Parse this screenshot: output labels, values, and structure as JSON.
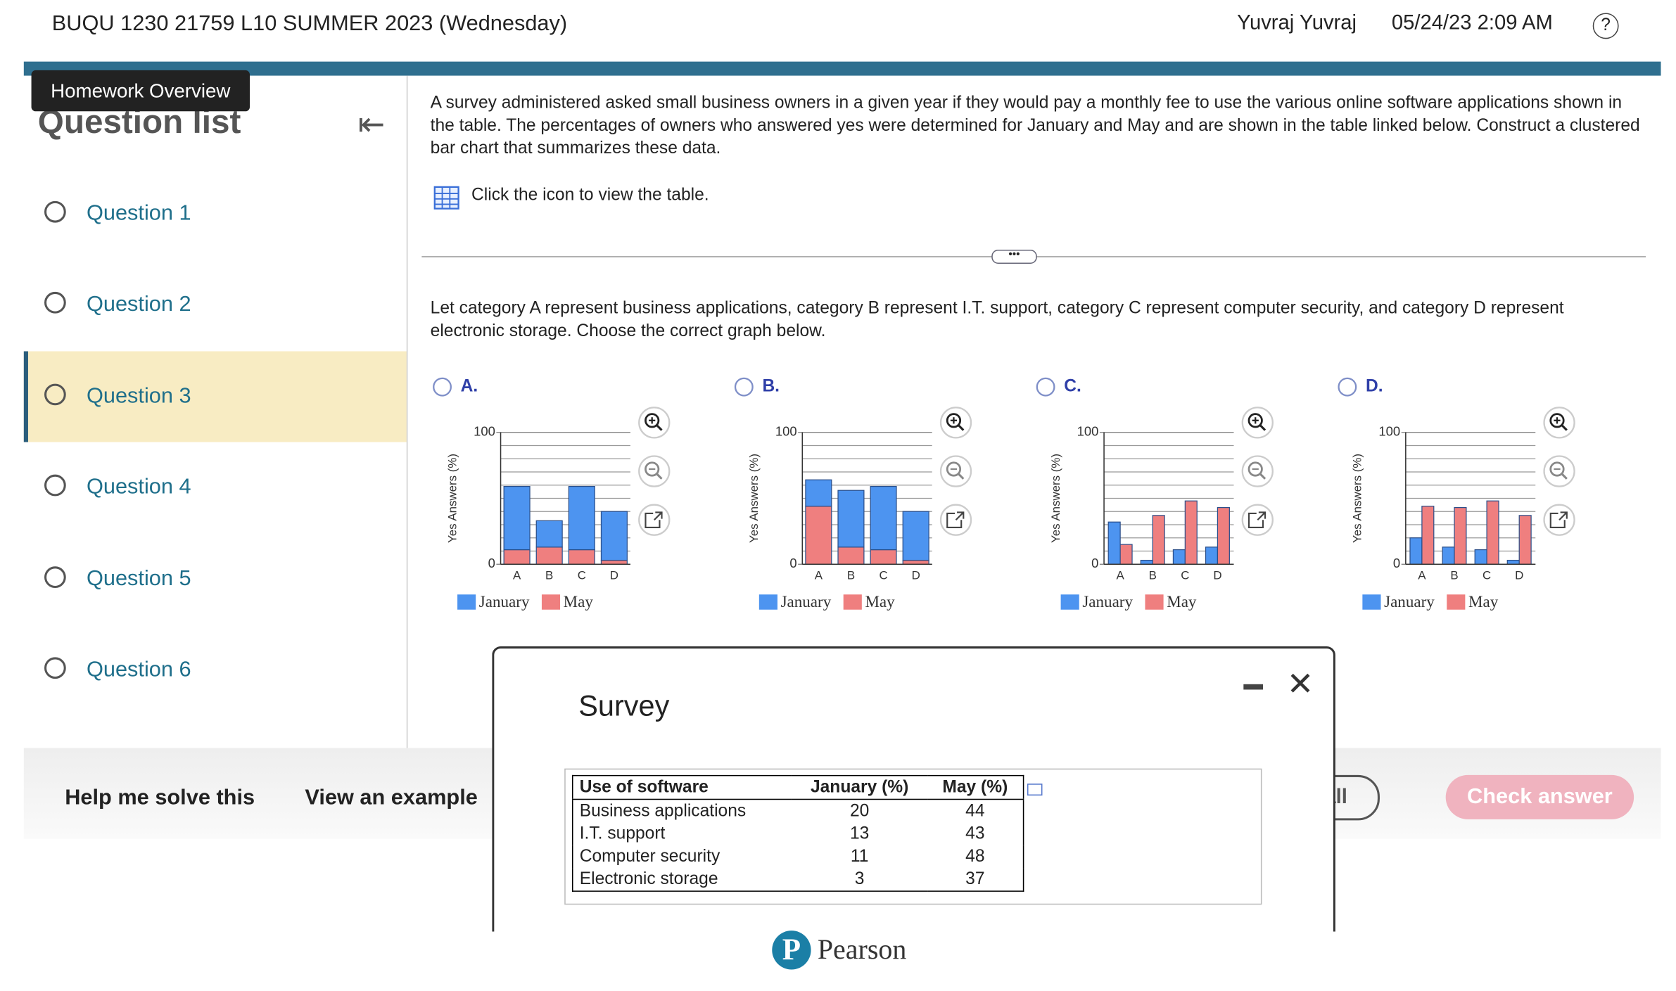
{
  "header": {
    "course": "BUQU 1230 21759 L10 SUMMER 2023 (Wednesday)",
    "user": "Yuvraj Yuvraj",
    "datetime": "05/24/23 2:09 AM"
  },
  "sidebar": {
    "tooltip": "Homework Overview",
    "title": "Question list",
    "questions": [
      "Question 1",
      "Question 2",
      "Question 3",
      "Question 4",
      "Question 5",
      "Question 6"
    ]
  },
  "question": {
    "text": "A survey administered asked small business owners in a given year if they would pay a monthly fee to use the various online software applications shown in the table. The percentages of owners who answered yes were determined for January and May and are shown in the table linked below. Construct a clustered bar chart that summarizes these data.",
    "table_link": "Click the icon to view the table.",
    "prompt": "Let category A represent business applications, category B represent I.T. support, category C represent computer security, and category D represent electronic storage. Choose the correct graph below.",
    "options": [
      "A.",
      "B.",
      "C.",
      "D."
    ]
  },
  "chart_data": [
    {
      "type": "bar",
      "stacked": true,
      "y_label": "Yes Answers (%)",
      "categories": [
        "A",
        "B",
        "C",
        "D"
      ],
      "series": [
        {
          "name": "January",
          "color": "#4d94f0",
          "values": [
            48,
            20,
            48,
            37
          ]
        },
        {
          "name": "May",
          "color": "#ef7f7f",
          "values": [
            11,
            13,
            11,
            3
          ]
        }
      ],
      "ylim": [
        0,
        100
      ],
      "yticks": [
        0,
        100
      ],
      "minor_ticks": [
        10,
        20,
        30,
        40,
        50,
        60,
        70,
        80,
        90
      ],
      "grid": true
    },
    {
      "type": "bar",
      "stacked": true,
      "y_label": "Yes Answers (%)",
      "categories": [
        "A",
        "B",
        "C",
        "D"
      ],
      "series": [
        {
          "name": "January",
          "color": "#4d94f0",
          "values": [
            20,
            43,
            48,
            37
          ]
        },
        {
          "name": "May",
          "color": "#ef7f7f",
          "values": [
            44,
            13,
            11,
            3
          ]
        }
      ],
      "ylim": [
        0,
        100
      ],
      "yticks": [
        0,
        100
      ],
      "minor_ticks": [
        10,
        20,
        30,
        40,
        50,
        60,
        70,
        80,
        90
      ],
      "grid": true
    },
    {
      "type": "bar",
      "stacked": false,
      "y_label": "Yes Answers (%)",
      "categories": [
        "A",
        "B",
        "C",
        "D"
      ],
      "series": [
        {
          "name": "January",
          "color": "#4d94f0",
          "values": [
            32,
            3,
            11,
            13
          ]
        },
        {
          "name": "May",
          "color": "#ef7f7f",
          "values": [
            15,
            37,
            48,
            43
          ]
        }
      ],
      "ylim": [
        0,
        100
      ],
      "yticks": [
        0,
        100
      ],
      "minor_ticks": [
        10,
        20,
        30,
        40,
        50,
        60,
        70,
        80,
        90
      ],
      "grid": true
    },
    {
      "type": "bar",
      "stacked": false,
      "y_label": "Yes Answers (%)",
      "categories": [
        "A",
        "B",
        "C",
        "D"
      ],
      "series": [
        {
          "name": "January",
          "color": "#4d94f0",
          "values": [
            20,
            13,
            11,
            3
          ]
        },
        {
          "name": "May",
          "color": "#ef7f7f",
          "values": [
            44,
            43,
            48,
            37
          ]
        }
      ],
      "ylim": [
        0,
        100
      ],
      "yticks": [
        0,
        100
      ],
      "minor_ticks": [
        10,
        20,
        30,
        40,
        50,
        60,
        70,
        80,
        90
      ],
      "grid": true
    }
  ],
  "footer": {
    "help": "Help me solve this",
    "example": "View an example",
    "clear": "all",
    "check": "Check answer"
  },
  "modal": {
    "title": "Survey",
    "table": {
      "header": [
        "Use of software",
        "January (%)",
        "May (%)"
      ],
      "rows": [
        [
          "Business applications",
          20,
          44
        ],
        [
          "I.T. support",
          13,
          43
        ],
        [
          "Computer security",
          11,
          48
        ],
        [
          "Electronic storage",
          3,
          37
        ]
      ]
    }
  },
  "brand": "Pearson"
}
